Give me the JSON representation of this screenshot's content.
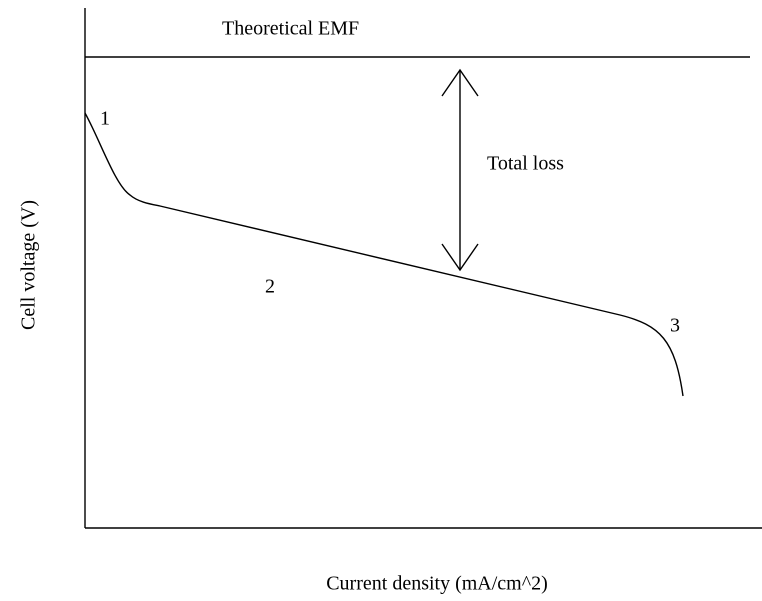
{
  "title": "Theoretical EMF",
  "regions": [
    "1",
    "2",
    "3"
  ],
  "annotation": "Total loss",
  "axes": {
    "y_label": "Cell voltage (V)",
    "x_label": "Current density (mA/cm^2)"
  }
}
